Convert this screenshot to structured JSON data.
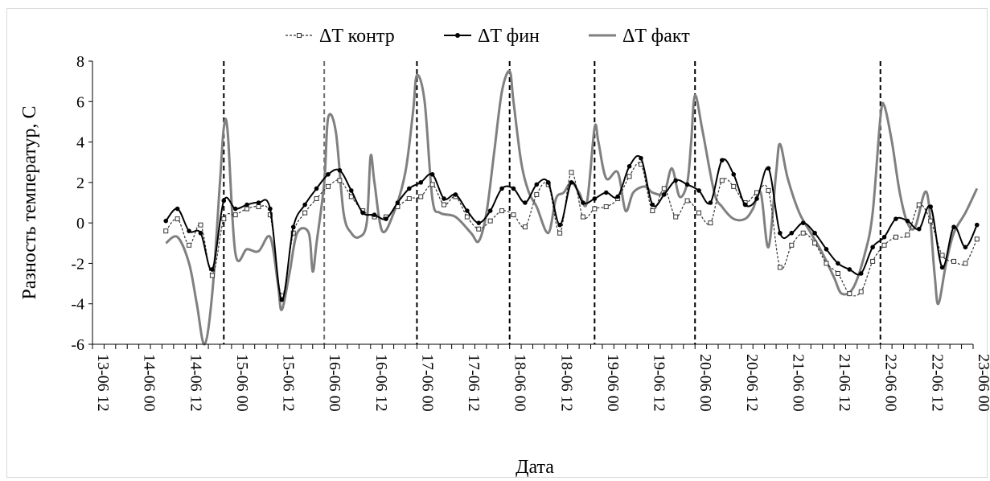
{
  "chart_data": {
    "type": "line",
    "title": "",
    "xlabel": "Дата",
    "ylabel": "Разность температур, С",
    "ylim": [
      -6,
      8
    ],
    "yticks": [
      -6,
      -4,
      -2,
      0,
      2,
      4,
      6,
      8
    ],
    "xlim": [
      0,
      228
    ],
    "x_unit": "hours from 13-06 12:00",
    "xtick_labels": [
      "13-06 12",
      "14-06 00",
      "14-06 12",
      "15-06 00",
      "15-06 12",
      "16-06 00",
      "16-06 12",
      "17-06 00",
      "17-06 12",
      "18-06 00",
      "18-06 12",
      "19-06 00",
      "19-06 12",
      "20-06 00",
      "20-06 12",
      "21-06 00",
      "21-06 12",
      "22-06 00",
      "22-06 12",
      "23-06 00"
    ],
    "vertical_dashed_lines_x": [
      34,
      60,
      84,
      108,
      130,
      156,
      204
    ],
    "grid": false,
    "legend_position": "top",
    "series": [
      {
        "name": "ΔT контр",
        "style": "dashed-square-markers",
        "color": "#333333",
        "points": [
          [
            19,
            -0.4
          ],
          [
            22,
            0.2
          ],
          [
            25,
            -1.1
          ],
          [
            28,
            -0.1
          ],
          [
            31,
            -2.6
          ],
          [
            34,
            0.2
          ],
          [
            37,
            0.4
          ],
          [
            40,
            0.7
          ],
          [
            43,
            0.8
          ],
          [
            46,
            0.4
          ],
          [
            49,
            -3.6
          ],
          [
            52,
            -0.5
          ],
          [
            55,
            0.5
          ],
          [
            58,
            1.2
          ],
          [
            61,
            1.8
          ],
          [
            64,
            2.1
          ],
          [
            67,
            1.3
          ],
          [
            70,
            0.6
          ],
          [
            73,
            0.3
          ],
          [
            76,
            0.3
          ],
          [
            79,
            0.8
          ],
          [
            82,
            1.2
          ],
          [
            85,
            1.3
          ],
          [
            88,
            1.9
          ],
          [
            91,
            0.9
          ],
          [
            94,
            1.3
          ],
          [
            97,
            0.3
          ],
          [
            100,
            -0.3
          ],
          [
            103,
            0.1
          ],
          [
            106,
            0.6
          ],
          [
            109,
            0.4
          ],
          [
            112,
            -0.2
          ],
          [
            115,
            1.4
          ],
          [
            118,
            1.9
          ],
          [
            121,
            -0.5
          ],
          [
            124,
            2.5
          ],
          [
            127,
            0.3
          ],
          [
            130,
            0.7
          ],
          [
            133,
            0.8
          ],
          [
            136,
            1.2
          ],
          [
            139,
            2.3
          ],
          [
            142,
            2.9
          ],
          [
            145,
            0.6
          ],
          [
            148,
            1.7
          ],
          [
            151,
            0.3
          ],
          [
            154,
            1.1
          ],
          [
            157,
            0.5
          ],
          [
            160,
            0.0
          ],
          [
            163,
            2.1
          ],
          [
            166,
            1.8
          ],
          [
            169,
            1.0
          ],
          [
            172,
            1.5
          ],
          [
            175,
            1.6
          ],
          [
            178,
            -2.2
          ],
          [
            181,
            -1.1
          ],
          [
            184,
            -0.5
          ],
          [
            187,
            -1.0
          ],
          [
            190,
            -2.0
          ],
          [
            193,
            -2.5
          ],
          [
            196,
            -3.5
          ],
          [
            199,
            -3.4
          ],
          [
            202,
            -1.9
          ],
          [
            205,
            -1.1
          ],
          [
            208,
            -0.7
          ],
          [
            211,
            -0.6
          ],
          [
            214,
            0.9
          ],
          [
            217,
            0.1
          ],
          [
            220,
            -1.6
          ],
          [
            223,
            -1.9
          ],
          [
            226,
            -2.0
          ],
          [
            229,
            -0.8
          ]
        ]
      },
      {
        "name": "ΔT фин",
        "style": "solid-dot-markers",
        "color": "#000000",
        "points": [
          [
            19,
            0.1
          ],
          [
            22,
            0.7
          ],
          [
            25,
            -0.4
          ],
          [
            28,
            -0.5
          ],
          [
            31,
            -2.3
          ],
          [
            34,
            1.1
          ],
          [
            37,
            0.7
          ],
          [
            40,
            0.9
          ],
          [
            43,
            1.0
          ],
          [
            46,
            0.7
          ],
          [
            49,
            -3.8
          ],
          [
            52,
            -0.2
          ],
          [
            55,
            0.9
          ],
          [
            58,
            1.7
          ],
          [
            61,
            2.4
          ],
          [
            64,
            2.6
          ],
          [
            67,
            1.6
          ],
          [
            70,
            0.5
          ],
          [
            73,
            0.4
          ],
          [
            76,
            0.2
          ],
          [
            79,
            1.0
          ],
          [
            82,
            1.7
          ],
          [
            85,
            2.0
          ],
          [
            88,
            2.4
          ],
          [
            91,
            1.2
          ],
          [
            94,
            1.4
          ],
          [
            97,
            0.6
          ],
          [
            100,
            0.0
          ],
          [
            103,
            0.6
          ],
          [
            106,
            1.7
          ],
          [
            109,
            1.7
          ],
          [
            112,
            1.0
          ],
          [
            115,
            1.9
          ],
          [
            118,
            2.0
          ],
          [
            121,
            -0.1
          ],
          [
            124,
            2.0
          ],
          [
            127,
            1.0
          ],
          [
            130,
            1.2
          ],
          [
            133,
            1.5
          ],
          [
            136,
            1.3
          ],
          [
            139,
            2.8
          ],
          [
            142,
            3.2
          ],
          [
            145,
            0.9
          ],
          [
            148,
            1.4
          ],
          [
            151,
            2.1
          ],
          [
            154,
            1.9
          ],
          [
            157,
            1.6
          ],
          [
            160,
            1.0
          ],
          [
            163,
            3.1
          ],
          [
            166,
            2.4
          ],
          [
            169,
            0.9
          ],
          [
            172,
            1.2
          ],
          [
            175,
            2.7
          ],
          [
            178,
            -0.5
          ],
          [
            181,
            -0.5
          ],
          [
            184,
            0.0
          ],
          [
            187,
            -0.5
          ],
          [
            190,
            -1.3
          ],
          [
            193,
            -2.0
          ],
          [
            196,
            -2.3
          ],
          [
            199,
            -2.5
          ],
          [
            202,
            -1.2
          ],
          [
            205,
            -0.7
          ],
          [
            208,
            0.2
          ],
          [
            211,
            0.1
          ],
          [
            214,
            -0.3
          ],
          [
            217,
            0.8
          ],
          [
            220,
            -2.2
          ],
          [
            223,
            -0.2
          ],
          [
            226,
            -1.2
          ],
          [
            229,
            -0.1
          ]
        ]
      },
      {
        "name": "ΔT факт",
        "style": "solid-thick",
        "color": "#808080",
        "points": [
          [
            19,
            -1.0
          ],
          [
            22,
            -0.7
          ],
          [
            25,
            -2.0
          ],
          [
            27,
            -4.0
          ],
          [
            29,
            -6.0
          ],
          [
            31,
            -3.5
          ],
          [
            33,
            2.0
          ],
          [
            34,
            4.7
          ],
          [
            35,
            4.5
          ],
          [
            37,
            -1.5
          ],
          [
            40,
            -1.3
          ],
          [
            43,
            -1.4
          ],
          [
            46,
            -0.7
          ],
          [
            48,
            -3.0
          ],
          [
            49,
            -4.3
          ],
          [
            51,
            -2.5
          ],
          [
            53,
            -0.5
          ],
          [
            56,
            -0.5
          ],
          [
            57,
            -2.4
          ],
          [
            58,
            -1.0
          ],
          [
            60,
            2.0
          ],
          [
            61,
            5.2
          ],
          [
            63,
            4.5
          ],
          [
            65,
            0.5
          ],
          [
            67,
            -0.5
          ],
          [
            69,
            -0.7
          ],
          [
            71,
            0.0
          ],
          [
            72,
            3.3
          ],
          [
            73,
            2.0
          ],
          [
            75,
            -0.4
          ],
          [
            78,
            0.5
          ],
          [
            81,
            2.5
          ],
          [
            83,
            5.5
          ],
          [
            84,
            7.3
          ],
          [
            86,
            6.0
          ],
          [
            88,
            1.2
          ],
          [
            90,
            0.5
          ],
          [
            94,
            0.3
          ],
          [
            98,
            -0.5
          ],
          [
            100,
            -0.9
          ],
          [
            102,
            0.5
          ],
          [
            104,
            3.5
          ],
          [
            106,
            6.5
          ],
          [
            108,
            7.5
          ],
          [
            109,
            6.0
          ],
          [
            111,
            3.0
          ],
          [
            113,
            1.5
          ],
          [
            115,
            0.8
          ],
          [
            118,
            -0.5
          ],
          [
            120,
            1.2
          ],
          [
            122,
            1.5
          ],
          [
            124,
            2.0
          ],
          [
            126,
            1.5
          ],
          [
            128,
            1.0
          ],
          [
            130,
            4.7
          ],
          [
            131,
            4.0
          ],
          [
            133,
            2.2
          ],
          [
            136,
            2.5
          ],
          [
            138,
            0.6
          ],
          [
            140,
            1.5
          ],
          [
            143,
            1.8
          ],
          [
            145,
            1.5
          ],
          [
            148,
            1.5
          ],
          [
            150,
            2.7
          ],
          [
            152,
            1.3
          ],
          [
            154,
            2.0
          ],
          [
            155,
            4.0
          ],
          [
            156,
            6.3
          ],
          [
            158,
            4.5
          ],
          [
            161,
            1.5
          ],
          [
            163,
            0.8
          ],
          [
            166,
            0.2
          ],
          [
            169,
            0.2
          ],
          [
            171,
            0.7
          ],
          [
            173,
            1.5
          ],
          [
            175,
            -1.2
          ],
          [
            177,
            2.5
          ],
          [
            178,
            3.9
          ],
          [
            180,
            2.2
          ],
          [
            183,
            0.5
          ],
          [
            186,
            -0.5
          ],
          [
            189,
            -1.5
          ],
          [
            192,
            -2.7
          ],
          [
            194,
            -3.5
          ],
          [
            197,
            -3.2
          ],
          [
            200,
            -1.5
          ],
          [
            202,
            0.5
          ],
          [
            204,
            5.2
          ],
          [
            205,
            5.8
          ],
          [
            207,
            4.0
          ],
          [
            209,
            1.5
          ],
          [
            211,
            0.0
          ],
          [
            213,
            -0.2
          ],
          [
            216,
            1.5
          ],
          [
            218,
            -2.5
          ],
          [
            219,
            -4.0
          ],
          [
            221,
            -2.0
          ],
          [
            223,
            -0.5
          ],
          [
            226,
            0.5
          ],
          [
            229,
            1.7
          ]
        ]
      }
    ]
  }
}
